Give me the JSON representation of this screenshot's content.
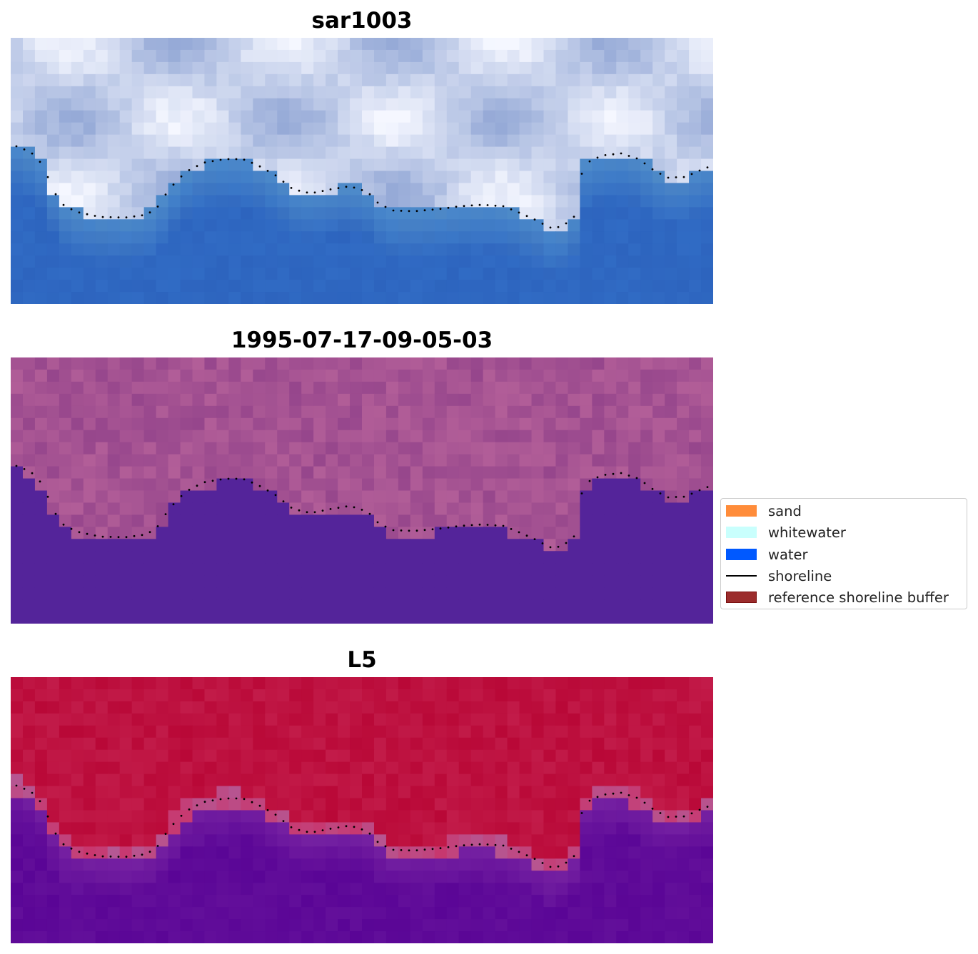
{
  "panels": [
    {
      "title": "sar1003",
      "style": "rgb"
    },
    {
      "title": "1995-07-17-09-05-03",
      "style": "classified"
    },
    {
      "title": "L5",
      "style": "index"
    }
  ],
  "legend": {
    "items": [
      {
        "label": "sand",
        "color": "#ff8c3a",
        "kind": "patch"
      },
      {
        "label": "whitewater",
        "color": "#c9fffd",
        "kind": "patch"
      },
      {
        "label": "water",
        "color": "#0059ff",
        "kind": "patch"
      },
      {
        "label": "shoreline",
        "color": "#000000",
        "kind": "line"
      },
      {
        "label": "reference shoreline buffer",
        "color": "#9b2c2c",
        "kind": "patch"
      }
    ]
  },
  "colors": {
    "water_class": "#54249a",
    "land_class": "#a4508f",
    "index_land": "#bb0d3a",
    "index_water": "#5e0796",
    "rgb_water": "#2f6cc0",
    "rgb_land": "#c8d4ee"
  }
}
